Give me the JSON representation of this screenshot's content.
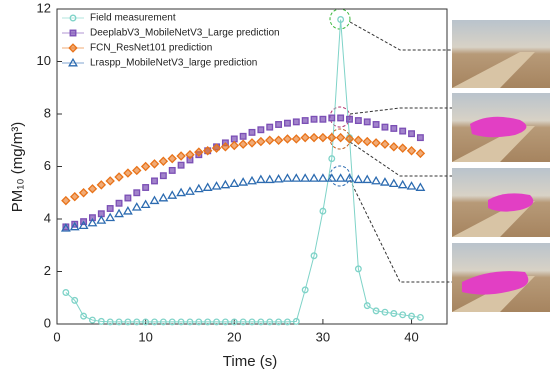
{
  "chart_data": {
    "type": "scatter",
    "xlabel": "Time (s)",
    "ylabel": "PM₁₀ (mg/m³)",
    "x": [
      1,
      2,
      3,
      4,
      5,
      6,
      7,
      8,
      9,
      10,
      11,
      12,
      13,
      14,
      15,
      16,
      17,
      18,
      19,
      20,
      21,
      22,
      23,
      24,
      25,
      26,
      27,
      28,
      29,
      30,
      31,
      32,
      33,
      34,
      35,
      36,
      37,
      38,
      39,
      40,
      41
    ],
    "xlim": [
      0,
      44
    ],
    "xticks": [
      0,
      10,
      20,
      30,
      40
    ],
    "ylim": [
      0,
      12
    ],
    "yticks": [
      0,
      2,
      4,
      6,
      8,
      10,
      12
    ],
    "legend": "top-left",
    "series": [
      {
        "name": "Field measurement",
        "color": "#7fd3c8",
        "marker": "circle",
        "line": true,
        "values": [
          1.2,
          0.9,
          0.3,
          0.15,
          0.1,
          0.08,
          0.08,
          0.08,
          0.08,
          0.08,
          0.08,
          0.08,
          0.08,
          0.08,
          0.08,
          0.08,
          0.08,
          0.08,
          0.08,
          0.08,
          0.08,
          0.08,
          0.08,
          0.08,
          0.08,
          0.08,
          0.1,
          1.3,
          2.6,
          4.3,
          6.3,
          11.6,
          7.1,
          2.1,
          0.7,
          0.5,
          0.45,
          0.4,
          0.35,
          0.3,
          0.25
        ]
      },
      {
        "name": "DeeplabV3_MobileNetV3_Large prediction",
        "color": "#7b4fb5",
        "marker": "square",
        "line": false,
        "values": [
          3.7,
          3.8,
          3.9,
          4.05,
          4.2,
          4.4,
          4.6,
          4.8,
          5.0,
          5.2,
          5.45,
          5.65,
          5.85,
          6.05,
          6.25,
          6.45,
          6.6,
          6.75,
          6.9,
          7.05,
          7.15,
          7.3,
          7.4,
          7.5,
          7.6,
          7.65,
          7.7,
          7.75,
          7.8,
          7.8,
          7.85,
          7.85,
          7.8,
          7.75,
          7.7,
          7.6,
          7.5,
          7.45,
          7.35,
          7.25,
          7.1
        ]
      },
      {
        "name": "FCN_ResNet101 prediction",
        "color": "#e8731a",
        "marker": "diamond",
        "line": false,
        "values": [
          4.7,
          4.85,
          5.0,
          5.15,
          5.3,
          5.45,
          5.6,
          5.75,
          5.85,
          6.0,
          6.1,
          6.2,
          6.3,
          6.4,
          6.45,
          6.55,
          6.6,
          6.7,
          6.75,
          6.8,
          6.85,
          6.9,
          6.95,
          7.0,
          7.0,
          7.05,
          7.05,
          7.1,
          7.1,
          7.1,
          7.1,
          7.1,
          7.05,
          7.0,
          6.95,
          6.9,
          6.85,
          6.75,
          6.7,
          6.6,
          6.5
        ]
      },
      {
        "name": "Lraspp_MobileNetV3_large prediction",
        "color": "#2c6bb0",
        "marker": "triangle",
        "line": false,
        "values": [
          3.65,
          3.7,
          3.75,
          3.85,
          3.95,
          4.05,
          4.2,
          4.3,
          4.45,
          4.55,
          4.7,
          4.8,
          4.9,
          5.0,
          5.05,
          5.15,
          5.2,
          5.25,
          5.3,
          5.35,
          5.4,
          5.45,
          5.5,
          5.5,
          5.52,
          5.55,
          5.55,
          5.55,
          5.55,
          5.55,
          5.55,
          5.55,
          5.55,
          5.5,
          5.5,
          5.45,
          5.4,
          5.35,
          5.3,
          5.25,
          5.2
        ]
      }
    ]
  }
}
